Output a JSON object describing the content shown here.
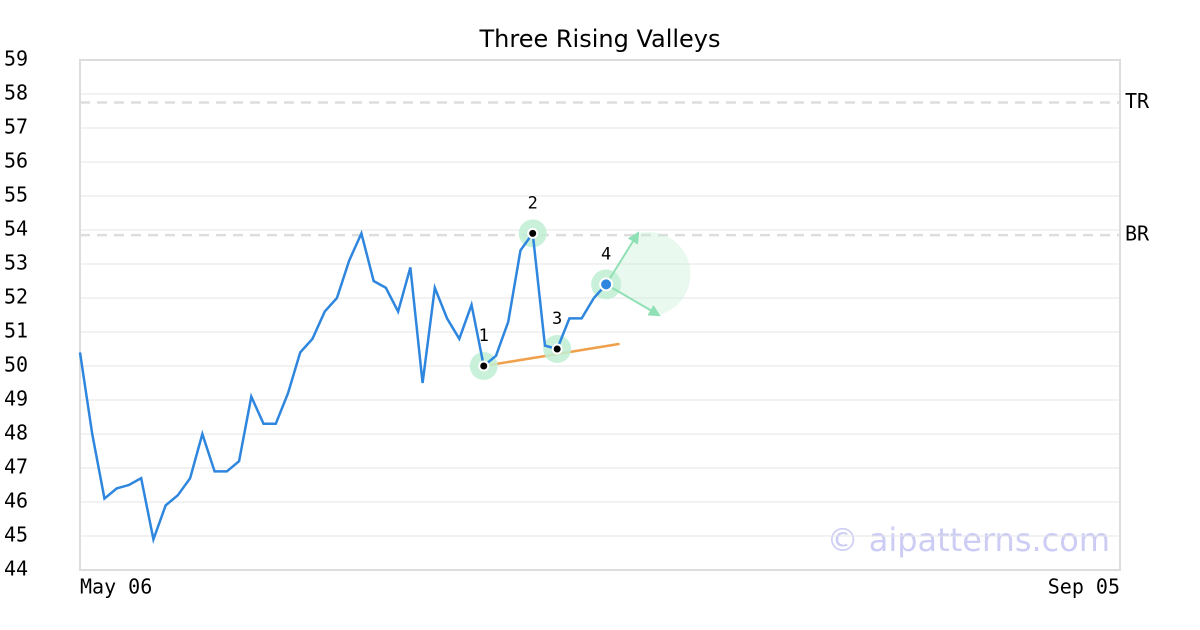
{
  "chart_data": {
    "type": "line",
    "title": "Three Rising Valleys",
    "series": [
      {
        "name": "Price",
        "color": "#2e86de",
        "values": [
          50.4,
          48.0,
          46.1,
          46.4,
          46.5,
          46.7,
          44.9,
          45.9,
          46.2,
          46.7,
          48.0,
          46.9,
          46.9,
          47.2,
          49.1,
          48.3,
          48.3,
          49.2,
          50.4,
          50.8,
          51.6,
          52.0,
          53.1,
          53.9,
          52.5,
          52.3,
          51.6,
          52.9,
          49.5,
          52.3,
          51.4,
          50.8,
          51.8,
          50.0,
          50.3,
          51.3,
          53.4,
          53.9,
          50.6,
          50.5,
          51.4,
          51.4,
          52.0,
          52.4
        ]
      }
    ],
    "xlim": [
      0,
      85
    ],
    "xticks": [
      {
        "value": 0,
        "label": "May 06"
      },
      {
        "value": 85,
        "label": "Sep 05"
      }
    ],
    "ylim": [
      44,
      59
    ],
    "yticks": [
      44,
      45,
      46,
      47,
      48,
      49,
      50,
      51,
      52,
      53,
      54,
      55,
      56,
      57,
      58,
      59
    ],
    "grid": true,
    "levels": [
      {
        "label": "TR",
        "value": 57.75
      },
      {
        "label": "BR",
        "value": 53.85
      }
    ],
    "pivots": [
      {
        "label": "1",
        "index": 33
      },
      {
        "label": "2",
        "index": 37
      },
      {
        "label": "3",
        "index": 39
      },
      {
        "label": "4",
        "index": 43
      }
    ],
    "trendline": {
      "color": "#f0a04b",
      "x": [
        33,
        44.1
      ],
      "y": [
        50.0,
        50.65
      ]
    },
    "arrows": {
      "color": "#8fe0b4",
      "x": [
        45.6,
        47.3
      ],
      "y": [
        53.9,
        51.5
      ]
    },
    "watermark": "© aipatterns.com"
  }
}
